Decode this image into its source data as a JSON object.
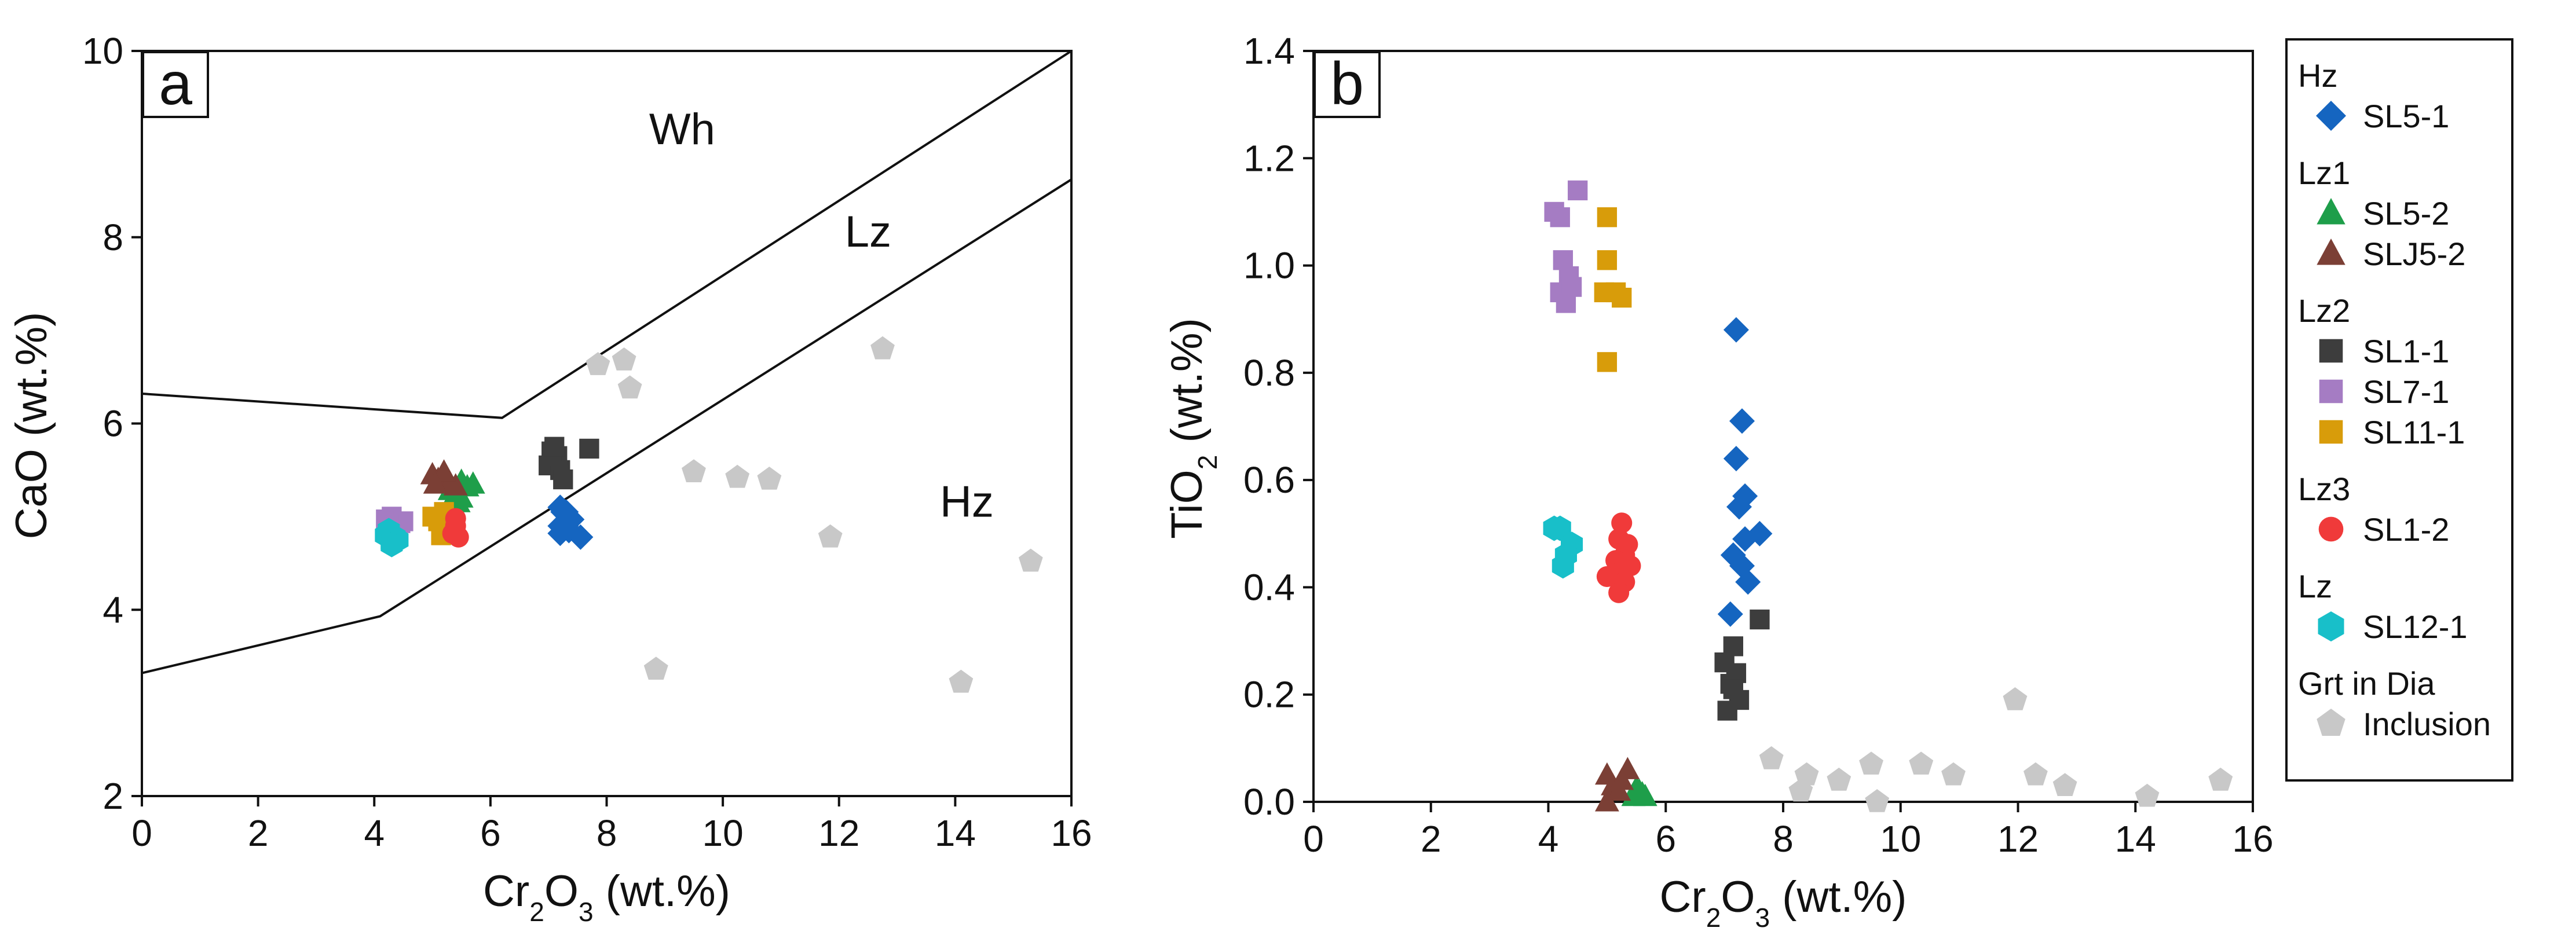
{
  "chart_data": [
    {
      "type": "scatter",
      "panel_label": "a",
      "xlabel": {
        "main": "Cr",
        "sub1": "2",
        "mid": "O",
        "sub2": "3",
        "tail": " (wt.%)"
      },
      "ylabel": "CaO (wt.%)",
      "xlim": [
        0,
        16
      ],
      "ylim": [
        2,
        10
      ],
      "xticks": [
        0,
        2,
        4,
        6,
        8,
        10,
        12,
        14,
        16
      ],
      "yticks": [
        2,
        4,
        6,
        8,
        10
      ],
      "field_labels": [
        {
          "text": "Wh",
          "x": 9.3,
          "y": 9.0
        },
        {
          "text": "Lz",
          "x": 12.5,
          "y": 7.9
        },
        {
          "text": "Hz",
          "x": 14.2,
          "y": 5.0
        }
      ],
      "boundary_lines": [
        {
          "name": "wh-lz-boundary",
          "points": [
            [
              0,
              6.32
            ],
            [
              6.2,
              6.06
            ],
            [
              16,
              10
            ]
          ]
        },
        {
          "name": "lz-hz-boundary",
          "points": [
            [
              0,
              3.32
            ],
            [
              4.1,
              3.93
            ],
            [
              16,
              8.62
            ]
          ]
        }
      ],
      "series": [
        {
          "name": "SL5-1",
          "marker": "diamond",
          "color": "#1565c0",
          "points": [
            [
              7.2,
              5.1
            ],
            [
              7.25,
              5.05
            ],
            [
              7.3,
              4.95
            ],
            [
              7.2,
              4.9
            ],
            [
              7.35,
              4.85
            ],
            [
              7.2,
              4.82
            ],
            [
              7.4,
              4.97
            ],
            [
              7.55,
              4.78
            ],
            [
              7.3,
              5.05
            ],
            [
              7.3,
              4.9
            ]
          ]
        },
        {
          "name": "SL5-2",
          "marker": "triangle",
          "color": "#1e9e4a",
          "points": [
            [
              5.5,
              5.38
            ],
            [
              5.6,
              5.32
            ],
            [
              5.4,
              5.25
            ],
            [
              5.5,
              5.2
            ],
            [
              5.7,
              5.35
            ],
            [
              5.3,
              5.28
            ],
            [
              5.45,
              5.15
            ]
          ]
        },
        {
          "name": "SLJ5-2",
          "marker": "triangle",
          "color": "#7b3f35",
          "points": [
            [
              5.0,
              5.45
            ],
            [
              5.1,
              5.4
            ],
            [
              5.2,
              5.38
            ],
            [
              5.3,
              5.36
            ],
            [
              5.4,
              5.33
            ],
            [
              5.2,
              5.48
            ],
            [
              5.05,
              5.35
            ]
          ]
        },
        {
          "name": "SL1-1",
          "marker": "square",
          "color": "#3d3d3d",
          "points": [
            [
              7.0,
              5.55
            ],
            [
              7.1,
              5.6
            ],
            [
              7.2,
              5.5
            ],
            [
              7.15,
              5.65
            ],
            [
              7.25,
              5.4
            ],
            [
              7.05,
              5.7
            ],
            [
              7.1,
              5.75
            ],
            [
              7.7,
              5.73
            ]
          ]
        },
        {
          "name": "SL7-1",
          "marker": "square",
          "color": "#a57cc3",
          "points": [
            [
              4.2,
              4.97
            ],
            [
              4.3,
              5.0
            ],
            [
              4.45,
              4.93
            ],
            [
              4.35,
              4.9
            ],
            [
              4.5,
              4.95
            ],
            [
              4.25,
              4.92
            ]
          ]
        },
        {
          "name": "SL11-1",
          "marker": "square",
          "color": "#d89c0a",
          "points": [
            [
              5.0,
              5.0
            ],
            [
              5.1,
              4.95
            ],
            [
              5.2,
              4.9
            ],
            [
              5.3,
              4.85
            ],
            [
              5.2,
              5.05
            ],
            [
              5.15,
              4.8
            ],
            [
              5.25,
              4.95
            ]
          ]
        },
        {
          "name": "SL1-2",
          "marker": "circle",
          "color": "#f03a3a",
          "points": [
            [
              5.4,
              4.9
            ],
            [
              5.45,
              4.78
            ],
            [
              5.35,
              4.82
            ],
            [
              5.4,
              4.98
            ]
          ]
        },
        {
          "name": "SL12-1",
          "marker": "hexagon",
          "color": "#18bfc9",
          "points": [
            [
              4.2,
              4.8
            ],
            [
              4.3,
              4.72
            ],
            [
              4.35,
              4.78
            ],
            [
              4.4,
              4.75
            ],
            [
              4.25,
              4.85
            ],
            [
              4.3,
              4.7
            ]
          ]
        },
        {
          "name": "Grt in Dia Inclusion",
          "marker": "pentagon",
          "color": "#c8c8c8",
          "points": [
            [
              7.85,
              6.63
            ],
            [
              8.3,
              6.68
            ],
            [
              8.4,
              6.38
            ],
            [
              8.85,
              3.36
            ],
            [
              9.5,
              5.48
            ],
            [
              10.25,
              5.42
            ],
            [
              10.8,
              5.4
            ],
            [
              11.85,
              4.78
            ],
            [
              12.75,
              6.8
            ],
            [
              14.1,
              3.22
            ],
            [
              15.3,
              4.52
            ]
          ]
        }
      ]
    },
    {
      "type": "scatter",
      "panel_label": "b",
      "xlabel": {
        "main": "Cr",
        "sub1": "2",
        "mid": "O",
        "sub2": "3",
        "tail": " (wt.%)"
      },
      "ylabel": {
        "main": "TiO",
        "sub": "2",
        "tail": " (wt.%)"
      },
      "xlim": [
        0,
        16
      ],
      "ylim": [
        0,
        1.4
      ],
      "xticks": [
        0,
        2,
        4,
        6,
        8,
        10,
        12,
        14,
        16
      ],
      "yticks": [
        0.0,
        0.2,
        0.4,
        0.6,
        0.8,
        1.0,
        1.2,
        1.4
      ],
      "series": [
        {
          "name": "SL5-1",
          "marker": "diamond",
          "color": "#1565c0",
          "points": [
            [
              7.2,
              0.88
            ],
            [
              7.3,
              0.71
            ],
            [
              7.2,
              0.64
            ],
            [
              7.35,
              0.57
            ],
            [
              7.25,
              0.55
            ],
            [
              7.6,
              0.5
            ],
            [
              7.35,
              0.49
            ],
            [
              7.15,
              0.46
            ],
            [
              7.3,
              0.44
            ],
            [
              7.4,
              0.41
            ],
            [
              7.1,
              0.35
            ]
          ]
        },
        {
          "name": "SL5-2",
          "marker": "triangle",
          "color": "#1e9e4a",
          "points": [
            [
              5.45,
              0.01
            ],
            [
              5.55,
              0.02
            ],
            [
              5.6,
              0.015
            ],
            [
              5.5,
              0.025
            ],
            [
              5.65,
              0.01
            ]
          ]
        },
        {
          "name": "SLJ5-2",
          "marker": "triangle",
          "color": "#7b3f35",
          "points": [
            [
              5.0,
              0.05
            ],
            [
              5.1,
              0.03
            ],
            [
              5.2,
              0.02
            ],
            [
              5.35,
              0.06
            ],
            [
              5.25,
              0.04
            ],
            [
              5.0,
              0.0
            ]
          ]
        },
        {
          "name": "SL1-1",
          "marker": "square",
          "color": "#3d3d3d",
          "points": [
            [
              7.15,
              0.29
            ],
            [
              7.0,
              0.26
            ],
            [
              7.2,
              0.24
            ],
            [
              7.1,
              0.22
            ],
            [
              7.25,
              0.19
            ],
            [
              7.05,
              0.17
            ],
            [
              7.6,
              0.34
            ],
            [
              7.15,
              0.21
            ]
          ]
        },
        {
          "name": "SL7-1",
          "marker": "square",
          "color": "#a57cc3",
          "points": [
            [
              4.1,
              1.1
            ],
            [
              4.2,
              1.09
            ],
            [
              4.5,
              1.14
            ],
            [
              4.25,
              1.01
            ],
            [
              4.35,
              0.98
            ],
            [
              4.2,
              0.95
            ],
            [
              4.4,
              0.96
            ],
            [
              4.3,
              0.93
            ]
          ]
        },
        {
          "name": "SL11-1",
          "marker": "square",
          "color": "#d89c0a",
          "points": [
            [
              5.0,
              1.09
            ],
            [
              5.0,
              1.01
            ],
            [
              4.95,
              0.95
            ],
            [
              5.15,
              0.95
            ],
            [
              5.25,
              0.94
            ],
            [
              5.0,
              0.82
            ]
          ]
        },
        {
          "name": "SL1-2",
          "marker": "circle",
          "color": "#f03a3a",
          "points": [
            [
              5.25,
              0.52
            ],
            [
              5.2,
              0.49
            ],
            [
              5.35,
              0.48
            ],
            [
              5.3,
              0.46
            ],
            [
              5.4,
              0.44
            ],
            [
              5.15,
              0.45
            ],
            [
              5.25,
              0.43
            ],
            [
              5.0,
              0.42
            ],
            [
              5.3,
              0.41
            ],
            [
              5.2,
              0.39
            ]
          ]
        },
        {
          "name": "SL12-1",
          "marker": "hexagon",
          "color": "#18bfc9",
          "points": [
            [
              4.1,
              0.51
            ],
            [
              4.2,
              0.51
            ],
            [
              4.4,
              0.48
            ],
            [
              4.3,
              0.46
            ],
            [
              4.25,
              0.44
            ]
          ]
        },
        {
          "name": "Grt in Dia Inclusion",
          "marker": "pentagon",
          "color": "#c8c8c8",
          "points": [
            [
              7.8,
              0.08
            ],
            [
              8.4,
              0.05
            ],
            [
              8.3,
              0.02
            ],
            [
              8.95,
              0.04
            ],
            [
              9.5,
              0.07
            ],
            [
              9.6,
              0.0
            ],
            [
              10.35,
              0.07
            ],
            [
              10.9,
              0.05
            ],
            [
              11.95,
              0.19
            ],
            [
              12.3,
              0.05
            ],
            [
              12.8,
              0.03
            ],
            [
              14.2,
              0.01
            ],
            [
              15.45,
              0.04
            ]
          ]
        }
      ]
    }
  ],
  "legend": {
    "groups": [
      {
        "label": "Hz",
        "items": [
          {
            "label": "SL5-1",
            "marker": "diamond",
            "color": "#1565c0"
          }
        ]
      },
      {
        "label": "Lz1",
        "items": [
          {
            "label": "SL5-2",
            "marker": "triangle",
            "color": "#1e9e4a"
          },
          {
            "label": "SLJ5-2",
            "marker": "triangle",
            "color": "#7b3f35"
          }
        ]
      },
      {
        "label": "Lz2",
        "items": [
          {
            "label": "SL1-1",
            "marker": "square",
            "color": "#3d3d3d"
          },
          {
            "label": "SL7-1",
            "marker": "square",
            "color": "#a57cc3"
          },
          {
            "label": "SL11-1",
            "marker": "square",
            "color": "#d89c0a"
          }
        ]
      },
      {
        "label": "Lz3",
        "items": [
          {
            "label": "SL1-2",
            "marker": "circle",
            "color": "#f03a3a"
          }
        ]
      },
      {
        "label": "Lz",
        "items": [
          {
            "label": "SL12-1",
            "marker": "hexagon",
            "color": "#18bfc9"
          }
        ]
      },
      {
        "label": "Grt in Dia",
        "items": [
          {
            "label": "Inclusion",
            "marker": "pentagon",
            "color": "#c8c8c8"
          }
        ]
      }
    ]
  }
}
